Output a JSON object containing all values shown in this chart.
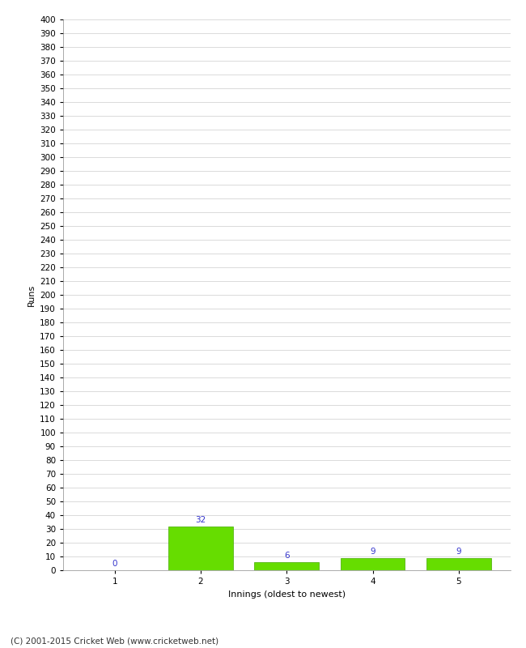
{
  "categories": [
    1,
    2,
    3,
    4,
    5
  ],
  "values": [
    0,
    32,
    6,
    9,
    9
  ],
  "bar_color": "#66dd00",
  "bar_edge_color": "#44aa00",
  "xlabel": "Innings (oldest to newest)",
  "ylabel": "Runs",
  "ylim": [
    0,
    400
  ],
  "ytick_step": 10,
  "background_color": "#ffffff",
  "grid_color": "#cccccc",
  "label_color": "#3333cc",
  "footer": "(C) 2001-2015 Cricket Web (www.cricketweb.net)",
  "label_fontsize": 7.5,
  "axis_label_fontsize": 8,
  "tick_fontsize": 7.5,
  "footer_fontsize": 7.5,
  "bar_width": 0.75
}
